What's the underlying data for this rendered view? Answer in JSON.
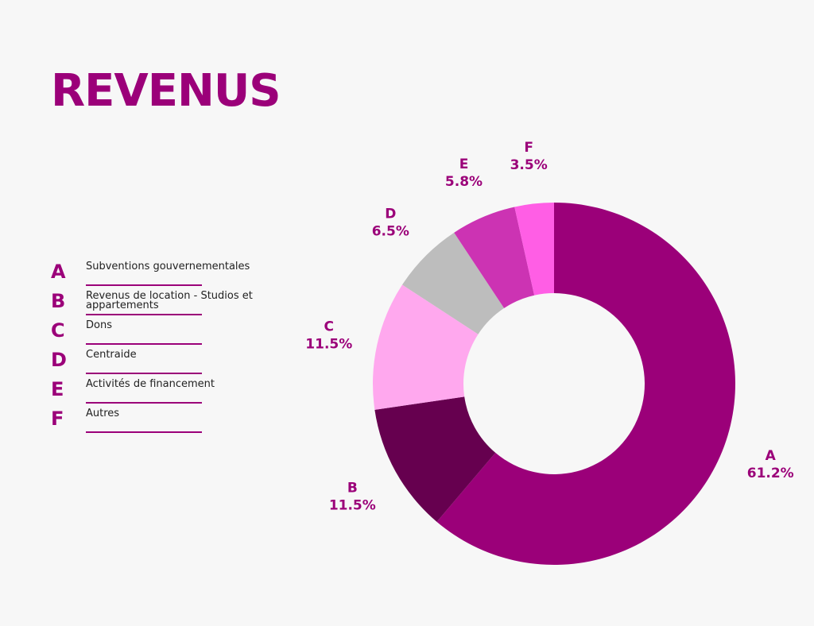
{
  "title": "REVENUS",
  "legend": [
    {
      "letter": "A",
      "label": "Subventions gouvernementales"
    },
    {
      "letter": "B",
      "label": "Revenus de location - Studios et appartements"
    },
    {
      "letter": "C",
      "label": "Dons"
    },
    {
      "letter": "D",
      "label": "Centraide"
    },
    {
      "letter": "E",
      "label": "Activités de financement"
    },
    {
      "letter": "F",
      "label": "Autres"
    }
  ],
  "colors": {
    "accent": "#9b0079",
    "background": "#f7f7f7"
  },
  "chart_data": {
    "type": "pie",
    "donut": true,
    "categories": [
      "A",
      "B",
      "C",
      "D",
      "E",
      "F"
    ],
    "values": [
      61.2,
      11.5,
      11.5,
      6.5,
      5.8,
      3.5
    ],
    "value_labels": [
      "61.2%",
      "11.5%",
      "11.5%",
      "6.5%",
      "5.8%",
      "3.5%"
    ],
    "colors": [
      "#9b0079",
      "#66004f",
      "#ffa8ee",
      "#bdbdbd",
      "#cc33b3",
      "#ff5ee5"
    ]
  }
}
